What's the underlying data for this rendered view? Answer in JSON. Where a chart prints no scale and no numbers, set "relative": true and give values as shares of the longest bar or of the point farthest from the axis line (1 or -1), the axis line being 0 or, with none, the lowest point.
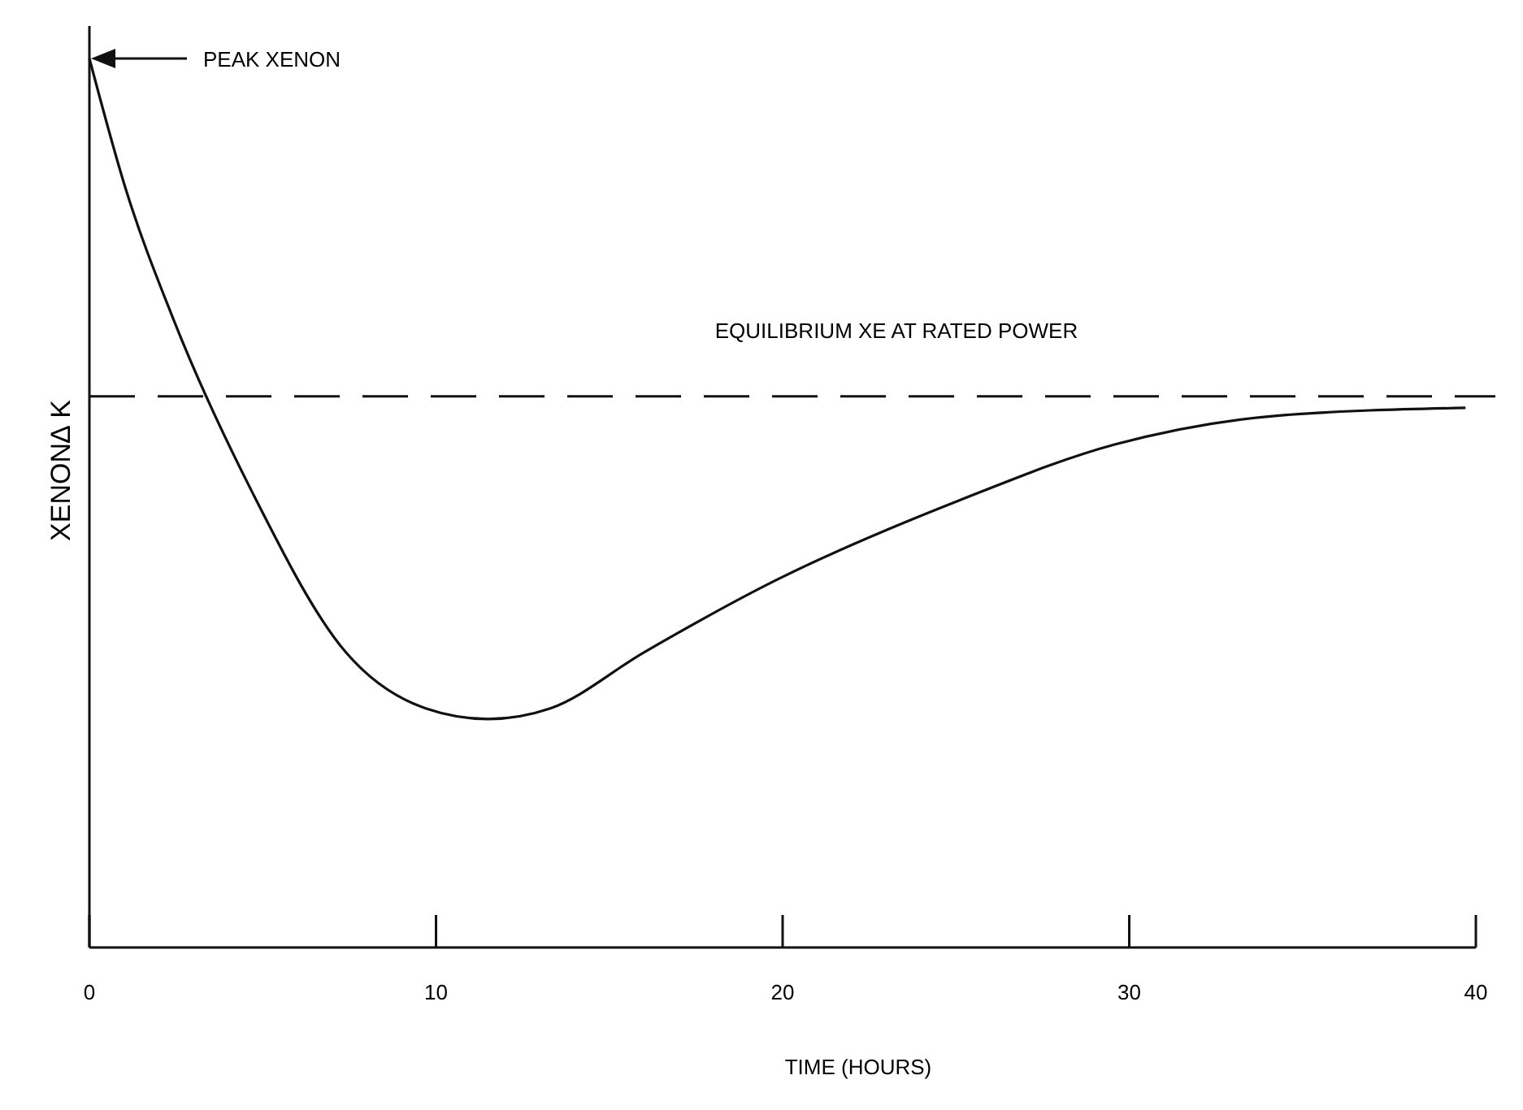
{
  "chart_data": {
    "type": "line",
    "relative": true,
    "xlabel": "TIME (HOURS)",
    "ylabel": "XENON∆ K",
    "xlim": [
      0,
      40
    ],
    "xticks": [
      0,
      10,
      20,
      30,
      40
    ],
    "grid": false,
    "line_style": "solid",
    "series": [
      {
        "color": "#111111",
        "x": [
          0,
          1.05,
          2.4,
          4.7,
          7.4,
          9.7,
          11.5,
          13.3,
          16,
          19.8,
          25.1,
          29.6,
          34.2,
          39.7
        ],
        "values": [
          1,
          0.853,
          0.709,
          0.512,
          0.332,
          0.269,
          0.257,
          0.269,
          0.332,
          0.413,
          0.503,
          0.566,
          0.598,
          0.607
        ]
      }
    ],
    "ref_lines": [
      {
        "axis": "y",
        "value": 0.62,
        "label": "EQUILIBRIUM XE AT RATED POWER",
        "color": "#111111",
        "line_style": "dashed"
      }
    ],
    "annotations": [
      "PEAK XENON"
    ]
  }
}
